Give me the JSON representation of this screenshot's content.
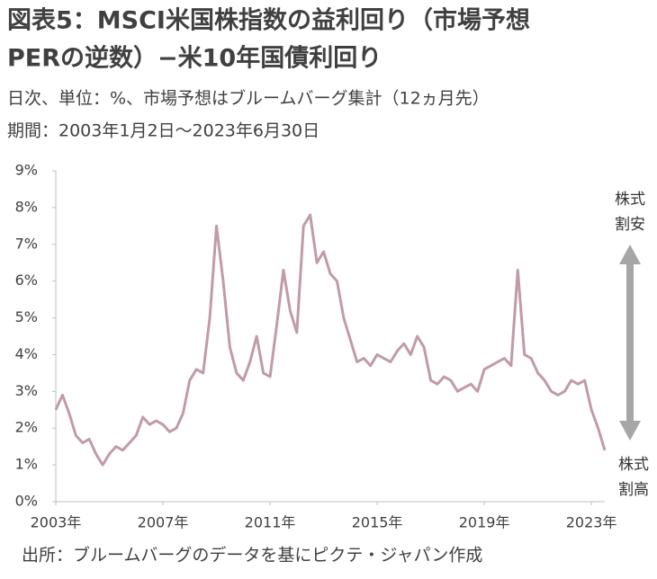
{
  "chart_data": {
    "type": "line",
    "title": [
      "図表5：MSCI米国株指数の益利回り（市場予想",
      "PERの逆数）−米10年国債利回り"
    ],
    "subtitle": [
      "日次、単位：%、市場予想はブルームバーグ集計（12ヵ月先）",
      "期間：2003年1月2日～2023年6月30日"
    ],
    "source": "出所：ブルームバーグのデータを基にピクテ・ジャパン作成",
    "annotations": [
      [
        "株式",
        "割安"
      ],
      [
        "株式",
        "割高"
      ]
    ],
    "x": [
      2003.0,
      2003.25,
      2003.5,
      2003.75,
      2004.0,
      2004.25,
      2004.5,
      2004.75,
      2005.0,
      2005.25,
      2005.5,
      2005.75,
      2006.0,
      2006.25,
      2006.5,
      2006.75,
      2007.0,
      2007.25,
      2007.5,
      2007.75,
      2008.0,
      2008.25,
      2008.5,
      2008.75,
      2009.0,
      2009.25,
      2009.5,
      2009.75,
      2010.0,
      2010.25,
      2010.5,
      2010.75,
      2011.0,
      2011.25,
      2011.5,
      2011.75,
      2012.0,
      2012.25,
      2012.5,
      2012.75,
      2013.0,
      2013.25,
      2013.5,
      2013.75,
      2014.0,
      2014.25,
      2014.5,
      2014.75,
      2015.0,
      2015.25,
      2015.5,
      2015.75,
      2016.0,
      2016.25,
      2016.5,
      2016.75,
      2017.0,
      2017.25,
      2017.5,
      2017.75,
      2018.0,
      2018.25,
      2018.5,
      2018.75,
      2019.0,
      2019.25,
      2019.5,
      2019.75,
      2020.0,
      2020.25,
      2020.5,
      2020.75,
      2021.0,
      2021.25,
      2021.5,
      2021.75,
      2022.0,
      2022.25,
      2022.5,
      2022.75,
      2023.0,
      2023.25,
      2023.5
    ],
    "series": [
      {
        "color": "#c19ba5",
        "values": [
          2.5,
          2.9,
          2.4,
          1.8,
          1.6,
          1.7,
          1.3,
          1.0,
          1.3,
          1.5,
          1.4,
          1.6,
          1.8,
          2.3,
          2.1,
          2.2,
          2.1,
          1.9,
          2.0,
          2.4,
          3.3,
          3.6,
          3.5,
          5.0,
          7.5,
          6.0,
          4.2,
          3.5,
          3.3,
          3.8,
          4.5,
          3.5,
          3.4,
          4.8,
          6.3,
          5.2,
          4.6,
          7.5,
          7.8,
          6.5,
          6.8,
          6.2,
          6.0,
          5.0,
          4.4,
          3.8,
          3.9,
          3.7,
          4.0,
          3.9,
          3.8,
          4.1,
          4.3,
          4.0,
          4.5,
          4.2,
          3.3,
          3.2,
          3.4,
          3.3,
          3.0,
          3.1,
          3.2,
          3.0,
          3.6,
          3.7,
          3.8,
          3.9,
          3.7,
          6.3,
          4.0,
          3.9,
          3.5,
          3.3,
          3.0,
          2.9,
          3.0,
          3.3,
          3.2,
          3.3,
          2.5,
          2.0,
          1.4
        ]
      }
    ],
    "xlim": [
      2003,
      2023.5
    ],
    "xticks": [
      {
        "value": 2003,
        "label": "2003年"
      },
      {
        "value": 2007,
        "label": "2007年"
      },
      {
        "value": 2011,
        "label": "2011年"
      },
      {
        "value": 2015,
        "label": "2015年"
      },
      {
        "value": 2019,
        "label": "2019年"
      },
      {
        "value": 2023,
        "label": "2023年"
      }
    ],
    "ylim": [
      0,
      9
    ],
    "yticks": [
      {
        "value": 0,
        "label": "0%"
      },
      {
        "value": 1,
        "label": "1%"
      },
      {
        "value": 2,
        "label": "2%"
      },
      {
        "value": 3,
        "label": "3%"
      },
      {
        "value": 4,
        "label": "4%"
      },
      {
        "value": 5,
        "label": "5%"
      },
      {
        "value": 6,
        "label": "6%"
      },
      {
        "value": 7,
        "label": "7%"
      },
      {
        "value": 8,
        "label": "8%"
      },
      {
        "value": 9,
        "label": "9%"
      }
    ]
  }
}
